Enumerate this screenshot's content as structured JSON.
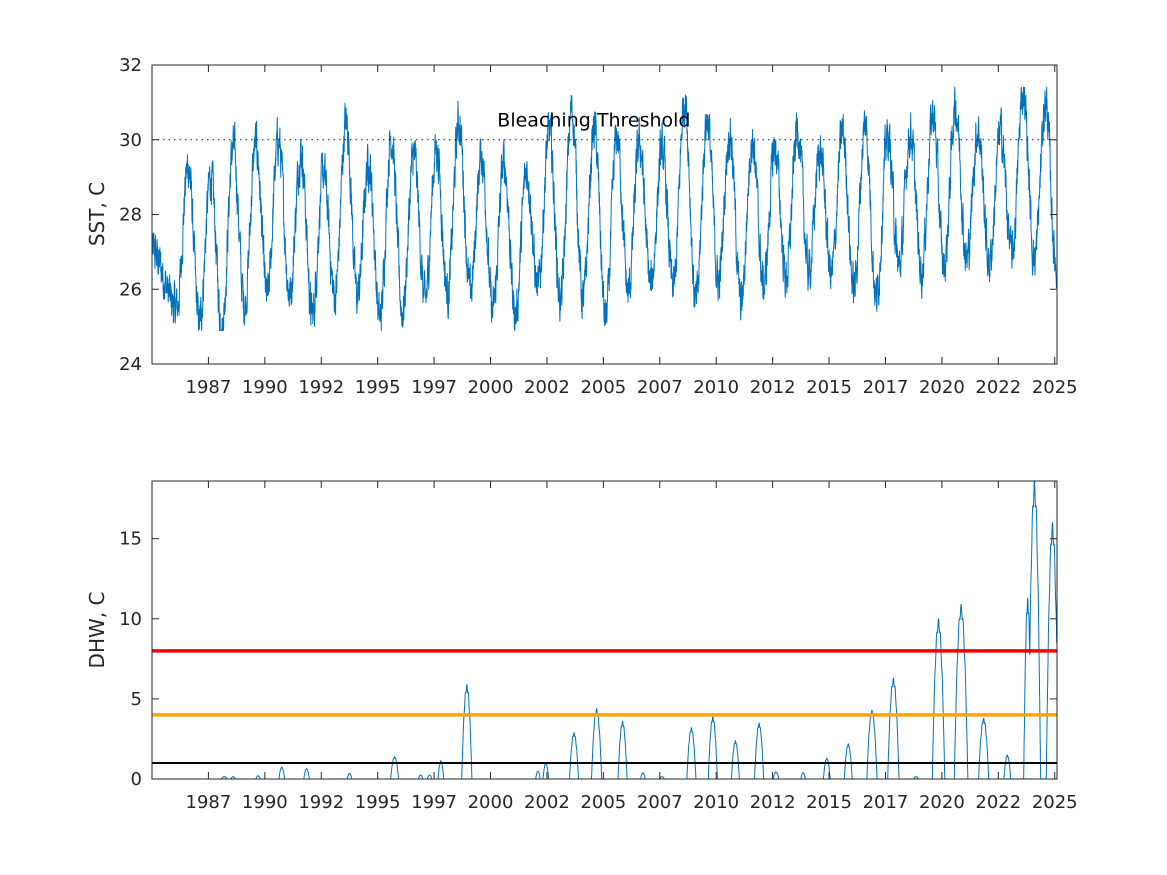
{
  "chart_data": [
    {
      "type": "line",
      "ylabel": "SST, C",
      "ylim": [
        24,
        32
      ],
      "xlim": [
        1985.0,
        2025.1
      ],
      "yticks": [
        24,
        26,
        28,
        30,
        32
      ],
      "xtick_labels": [
        "1987",
        "1990",
        "1992",
        "1995",
        "1997",
        "2000",
        "2002",
        "2005",
        "2007",
        "2010",
        "2012",
        "2015",
        "2017",
        "2020",
        "2022",
        "2025"
      ],
      "xtick_values": [
        1987.5,
        1990.0,
        1992.5,
        1995.0,
        1997.5,
        2000.0,
        2002.5,
        2005.0,
        2007.5,
        2010.0,
        2012.5,
        2015.0,
        2017.5,
        2020.0,
        2022.5,
        2025.0
      ],
      "grid": false,
      "series": [
        {
          "kind": "seasonal-sst",
          "color": "#0072BD",
          "base_mean": 27.5,
          "trend_per_year": 0.018,
          "seasonal_amplitude": 1.6,
          "summer_peaks": [
            {
              "x": 1986.6,
              "y": 29.3
            },
            {
              "x": 1987.6,
              "y": 29.0
            },
            {
              "x": 1988.6,
              "y": 29.8
            },
            {
              "x": 1989.6,
              "y": 29.9
            },
            {
              "x": 1990.6,
              "y": 30.0
            },
            {
              "x": 1991.6,
              "y": 29.7
            },
            {
              "x": 1992.6,
              "y": 29.1
            },
            {
              "x": 1993.6,
              "y": 30.5
            },
            {
              "x": 1994.6,
              "y": 29.4
            },
            {
              "x": 1995.6,
              "y": 30.1
            },
            {
              "x": 1996.6,
              "y": 29.6
            },
            {
              "x": 1997.6,
              "y": 29.8
            },
            {
              "x": 1998.6,
              "y": 30.5
            },
            {
              "x": 1999.6,
              "y": 29.6
            },
            {
              "x": 2000.6,
              "y": 29.4
            },
            {
              "x": 2001.6,
              "y": 29.2
            },
            {
              "x": 2002.6,
              "y": 30.2
            },
            {
              "x": 2003.6,
              "y": 30.8
            },
            {
              "x": 2004.6,
              "y": 30.3
            },
            {
              "x": 2005.6,
              "y": 30.1
            },
            {
              "x": 2006.6,
              "y": 29.9
            },
            {
              "x": 2007.6,
              "y": 29.7
            },
            {
              "x": 2008.6,
              "y": 31.1
            },
            {
              "x": 2009.6,
              "y": 30.6
            },
            {
              "x": 2010.6,
              "y": 30.2
            },
            {
              "x": 2011.6,
              "y": 30.0
            },
            {
              "x": 2012.6,
              "y": 29.8
            },
            {
              "x": 2013.6,
              "y": 30.3
            },
            {
              "x": 2014.6,
              "y": 29.7
            },
            {
              "x": 2015.6,
              "y": 30.2
            },
            {
              "x": 2016.6,
              "y": 30.4
            },
            {
              "x": 2017.6,
              "y": 30.1
            },
            {
              "x": 2018.6,
              "y": 30.2
            },
            {
              "x": 2019.6,
              "y": 30.7
            },
            {
              "x": 2020.6,
              "y": 30.9
            },
            {
              "x": 2021.6,
              "y": 30.3
            },
            {
              "x": 2022.6,
              "y": 30.2
            },
            {
              "x": 2023.6,
              "y": 31.3
            },
            {
              "x": 2024.6,
              "y": 31.0
            }
          ],
          "winter_troughs": [
            {
              "x": 1986.1,
              "y": 25.5
            },
            {
              "x": 1987.1,
              "y": 25.1
            },
            {
              "x": 1988.1,
              "y": 25.0
            },
            {
              "x": 1989.1,
              "y": 25.6
            },
            {
              "x": 1990.1,
              "y": 25.8
            },
            {
              "x": 1991.1,
              "y": 25.9
            },
            {
              "x": 1992.1,
              "y": 25.3
            },
            {
              "x": 1993.1,
              "y": 25.8
            },
            {
              "x": 1994.1,
              "y": 25.8
            },
            {
              "x": 1995.1,
              "y": 25.2
            },
            {
              "x": 1996.1,
              "y": 25.4
            },
            {
              "x": 1997.1,
              "y": 25.7
            },
            {
              "x": 1998.1,
              "y": 25.9
            },
            {
              "x": 1999.1,
              "y": 25.9
            },
            {
              "x": 2000.1,
              "y": 25.4
            },
            {
              "x": 2001.1,
              "y": 25.3
            },
            {
              "x": 2002.1,
              "y": 26.0
            },
            {
              "x": 2003.1,
              "y": 25.7
            },
            {
              "x": 2004.1,
              "y": 25.7
            },
            {
              "x": 2005.1,
              "y": 25.2
            },
            {
              "x": 2006.1,
              "y": 25.9
            },
            {
              "x": 2007.1,
              "y": 26.1
            },
            {
              "x": 2008.1,
              "y": 26.0
            },
            {
              "x": 2009.1,
              "y": 25.6
            },
            {
              "x": 2010.1,
              "y": 26.2
            },
            {
              "x": 2011.1,
              "y": 25.6
            },
            {
              "x": 2012.1,
              "y": 26.1
            },
            {
              "x": 2013.1,
              "y": 26.3
            },
            {
              "x": 2014.1,
              "y": 26.5
            },
            {
              "x": 2015.1,
              "y": 26.4
            },
            {
              "x": 2016.1,
              "y": 26.0
            },
            {
              "x": 2017.1,
              "y": 25.8
            },
            {
              "x": 2018.1,
              "y": 26.6
            },
            {
              "x": 2019.1,
              "y": 26.5
            },
            {
              "x": 2020.1,
              "y": 26.6
            },
            {
              "x": 2021.1,
              "y": 26.8
            },
            {
              "x": 2022.1,
              "y": 26.7
            },
            {
              "x": 2023.1,
              "y": 26.9
            },
            {
              "x": 2024.1,
              "y": 26.8
            },
            {
              "x": 2025.05,
              "y": 26.7
            }
          ]
        }
      ],
      "reference_lines": [
        {
          "y": 30,
          "style": "dotted",
          "color": "#0000FF",
          "label": "Bleaching Threshold",
          "label_x": 2000.3,
          "label_y": 30.35
        }
      ]
    },
    {
      "type": "line",
      "ylabel": "DHW, C",
      "ylim": [
        0,
        18.6
      ],
      "xlim": [
        1985.0,
        2025.1
      ],
      "yticks": [
        0,
        5,
        10,
        15
      ],
      "xtick_labels": [
        "1987",
        "1990",
        "1992",
        "1995",
        "1997",
        "2000",
        "2002",
        "2005",
        "2007",
        "2010",
        "2012",
        "2015",
        "2017",
        "2020",
        "2022",
        "2025"
      ],
      "xtick_values": [
        1987.5,
        1990.0,
        1992.5,
        1995.0,
        1997.5,
        2000.0,
        2002.5,
        2005.0,
        2007.5,
        2010.0,
        2012.5,
        2015.0,
        2017.5,
        2020.0,
        2022.5,
        2025.0
      ],
      "grid": false,
      "series": [
        {
          "kind": "dhw-events",
          "color": "#0072BD",
          "events": [
            {
              "x": 1988.2,
              "peak": 0.15,
              "width": 0.25
            },
            {
              "x": 1988.6,
              "peak": 0.15,
              "width": 0.2
            },
            {
              "x": 1989.7,
              "peak": 0.2,
              "width": 0.2
            },
            {
              "x": 1990.75,
              "peak": 0.75,
              "width": 0.25
            },
            {
              "x": 1991.85,
              "peak": 0.65,
              "width": 0.25
            },
            {
              "x": 1993.75,
              "peak": 0.35,
              "width": 0.2
            },
            {
              "x": 1995.75,
              "peak": 1.4,
              "width": 0.35
            },
            {
              "x": 1996.9,
              "peak": 0.25,
              "width": 0.2
            },
            {
              "x": 1997.3,
              "peak": 0.25,
              "width": 0.2
            },
            {
              "x": 1997.8,
              "peak": 1.15,
              "width": 0.25
            },
            {
              "x": 1998.95,
              "peak": 5.9,
              "width": 0.45
            },
            {
              "x": 2002.1,
              "peak": 0.5,
              "width": 0.2
            },
            {
              "x": 2002.45,
              "peak": 1.0,
              "width": 0.25
            },
            {
              "x": 2003.7,
              "peak": 2.9,
              "width": 0.4
            },
            {
              "x": 2004.7,
              "peak": 4.4,
              "width": 0.45
            },
            {
              "x": 2005.85,
              "peak": 3.6,
              "width": 0.4
            },
            {
              "x": 2006.75,
              "peak": 0.4,
              "width": 0.2
            },
            {
              "x": 2007.6,
              "peak": 0.15,
              "width": 0.2
            },
            {
              "x": 2008.9,
              "peak": 3.2,
              "width": 0.4
            },
            {
              "x": 2009.85,
              "peak": 3.9,
              "width": 0.4
            },
            {
              "x": 2010.85,
              "peak": 2.4,
              "width": 0.35
            },
            {
              "x": 2011.9,
              "peak": 3.5,
              "width": 0.4
            },
            {
              "x": 2012.65,
              "peak": 0.45,
              "width": 0.25
            },
            {
              "x": 2013.85,
              "peak": 0.4,
              "width": 0.2
            },
            {
              "x": 2014.9,
              "peak": 1.3,
              "width": 0.3
            },
            {
              "x": 2015.85,
              "peak": 2.2,
              "width": 0.35
            },
            {
              "x": 2016.9,
              "peak": 4.3,
              "width": 0.45
            },
            {
              "x": 2017.85,
              "peak": 6.3,
              "width": 0.5
            },
            {
              "x": 2018.85,
              "peak": 0.15,
              "width": 0.2
            },
            {
              "x": 2019.85,
              "peak": 10.0,
              "width": 0.55
            },
            {
              "x": 2020.85,
              "peak": 10.9,
              "width": 0.6
            },
            {
              "x": 2021.85,
              "peak": 3.8,
              "width": 0.45
            },
            {
              "x": 2022.9,
              "peak": 1.5,
              "width": 0.3
            },
            {
              "x": 2023.8,
              "peak": 11.3,
              "width": 0.35
            },
            {
              "x": 2024.1,
              "peak": 18.6,
              "width": 0.55
            },
            {
              "x": 2024.9,
              "peak": 16.0,
              "width": 0.55
            }
          ]
        }
      ],
      "reference_lines": [
        {
          "y": 8,
          "style": "solid",
          "color": "#FF0000"
        },
        {
          "y": 4,
          "style": "solid",
          "color": "#FFA500"
        },
        {
          "y": 1,
          "style": "solid",
          "color": "#000000"
        }
      ]
    }
  ]
}
